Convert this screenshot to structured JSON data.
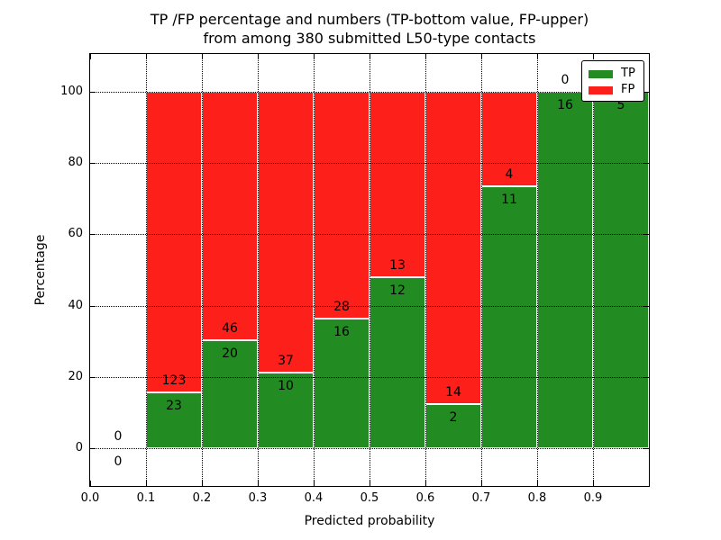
{
  "title": {
    "line1": "TP /FP percentage and numbers (TP-bottom value, FP-upper)",
    "line2": "from among 380 submitted L50-type contacts"
  },
  "chart_data": {
    "type": "bar",
    "subtype": "stacked-percentage",
    "title": "TP /FP percentage and numbers (TP-bottom value, FP-upper)\nfrom among 380 submitted L50-type contacts",
    "xlabel": "Predicted probability",
    "ylabel": "Percentage",
    "xlim": [
      0.0,
      1.0
    ],
    "ylim": [
      -10.5,
      110.5
    ],
    "xticks": [
      "0.0",
      "0.1",
      "0.2",
      "0.3",
      "0.4",
      "0.5",
      "0.6",
      "0.7",
      "0.8",
      "0.9"
    ],
    "yticks": [
      "0",
      "20",
      "40",
      "60",
      "80",
      "100"
    ],
    "grid": "dotted, drawn above bars",
    "legend_position": "upper right",
    "total_contacts": 380,
    "series": [
      {
        "name": "TP",
        "color": "#228b22"
      },
      {
        "name": "FP",
        "color": "#fc1f1a"
      }
    ],
    "bins": [
      {
        "x_start": 0.0,
        "x_end": 0.1,
        "tp": 0,
        "fp": 0
      },
      {
        "x_start": 0.1,
        "x_end": 0.2,
        "tp": 23,
        "fp": 123
      },
      {
        "x_start": 0.2,
        "x_end": 0.3,
        "tp": 20,
        "fp": 46
      },
      {
        "x_start": 0.3,
        "x_end": 0.4,
        "tp": 10,
        "fp": 37
      },
      {
        "x_start": 0.4,
        "x_end": 0.5,
        "tp": 16,
        "fp": 28
      },
      {
        "x_start": 0.5,
        "x_end": 0.6,
        "tp": 12,
        "fp": 13
      },
      {
        "x_start": 0.6,
        "x_end": 0.7,
        "tp": 2,
        "fp": 14
      },
      {
        "x_start": 0.7,
        "x_end": 0.8,
        "tp": 11,
        "fp": 4
      },
      {
        "x_start": 0.8,
        "x_end": 0.9,
        "tp": 16,
        "fp": 0
      },
      {
        "x_start": 0.9,
        "x_end": 1.0,
        "tp": 5,
        "fp": 0
      }
    ]
  }
}
